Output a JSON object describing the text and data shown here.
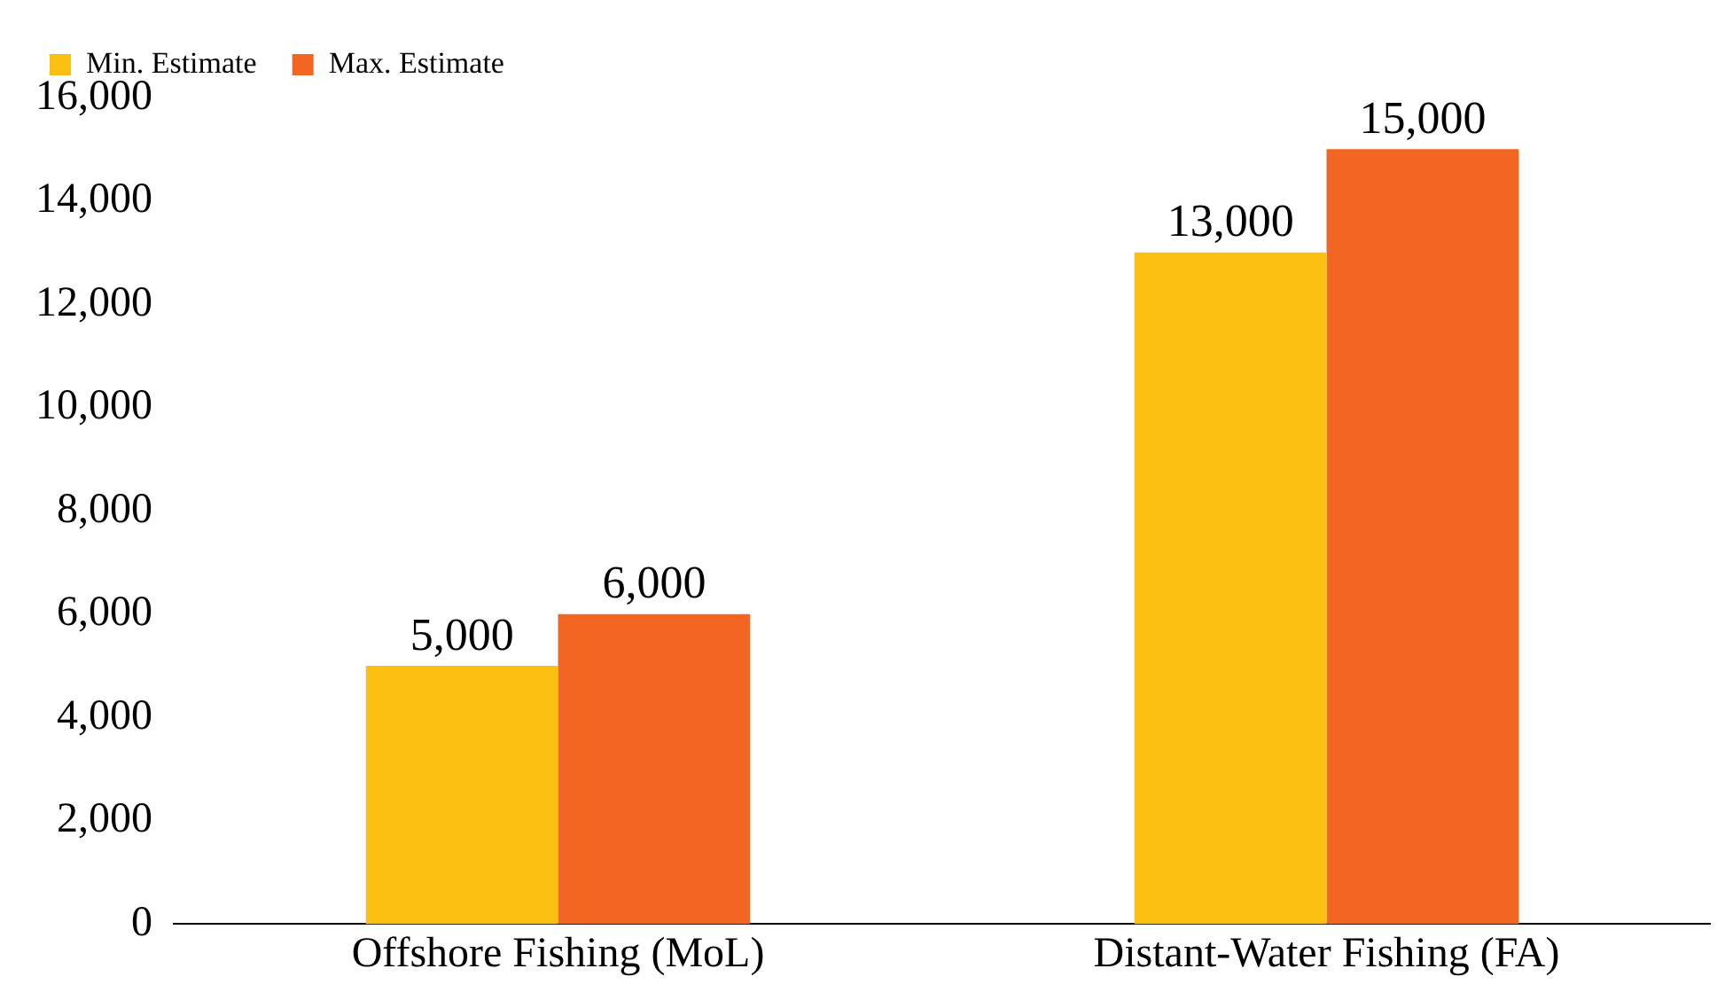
{
  "chart_data": {
    "type": "bar",
    "categories": [
      "Offshore Fishing (MoL)",
      "Distant-Water Fishing (FA)"
    ],
    "series": [
      {
        "name": "Min. Estimate",
        "color": "#fbbf11",
        "values": [
          5000,
          13000
        ],
        "value_labels": [
          "5,000",
          "13,000"
        ]
      },
      {
        "name": "Max. Estimate",
        "color": "#f26522",
        "values": [
          6000,
          15000
        ],
        "value_labels": [
          "6,000",
          "15,000"
        ]
      }
    ],
    "ylim": [
      0,
      16000
    ],
    "yticks": [
      0,
      {
        "value": 2000,
        "label": "2,000"
      },
      {
        "value": 4000,
        "label": "4,000"
      },
      {
        "value": 6000,
        "label": "6,000"
      },
      {
        "value": 8000,
        "label": "8,000"
      },
      {
        "value": 10000,
        "label": "10,000"
      },
      {
        "value": 12000,
        "label": "12,000"
      },
      {
        "value": 14000,
        "label": "14,000"
      },
      {
        "value": 16000,
        "label": "16,000"
      }
    ],
    "grid": false,
    "legend": "top left"
  }
}
